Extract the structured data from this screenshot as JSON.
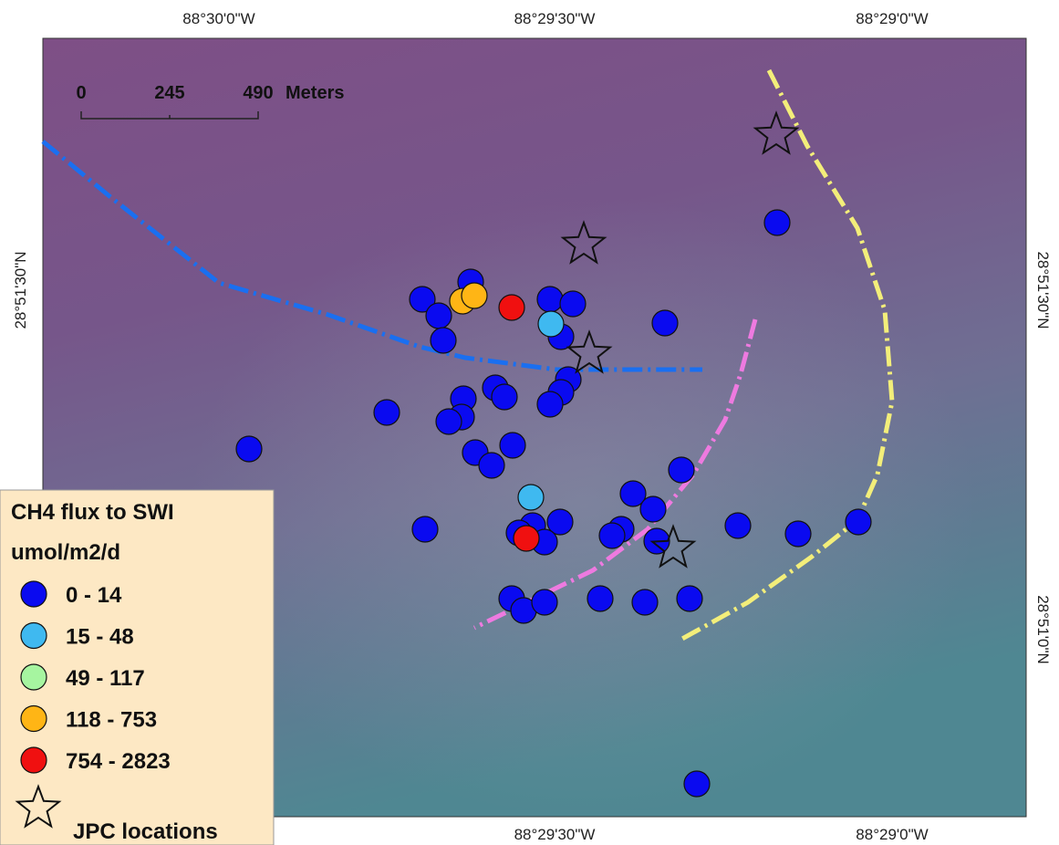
{
  "map": {
    "lon_labels": [
      "88°30'0\"W",
      "88°29'30\"W",
      "88°29'0\"W"
    ],
    "lat_labels": [
      "28°51'30\"N",
      "28°51'0\"N"
    ],
    "scale_bar": {
      "labels": [
        "0",
        "245",
        "490"
      ],
      "unit": "Meters"
    },
    "legend": {
      "title_lines": [
        "CH4 flux to SWI",
        "umol/m2/d"
      ],
      "classes": [
        {
          "label": "0 - 14",
          "color": "#0a0af0"
        },
        {
          "label": "15 - 48",
          "color": "#3fb9f0"
        },
        {
          "label": "49 - 117",
          "color": "#a6f5a0"
        },
        {
          "label": "118 - 753",
          "color": "#ffb515"
        },
        {
          "label": "754 - 2823",
          "color": "#f01010"
        }
      ],
      "jpc_label": "JPC locations"
    }
  }
}
